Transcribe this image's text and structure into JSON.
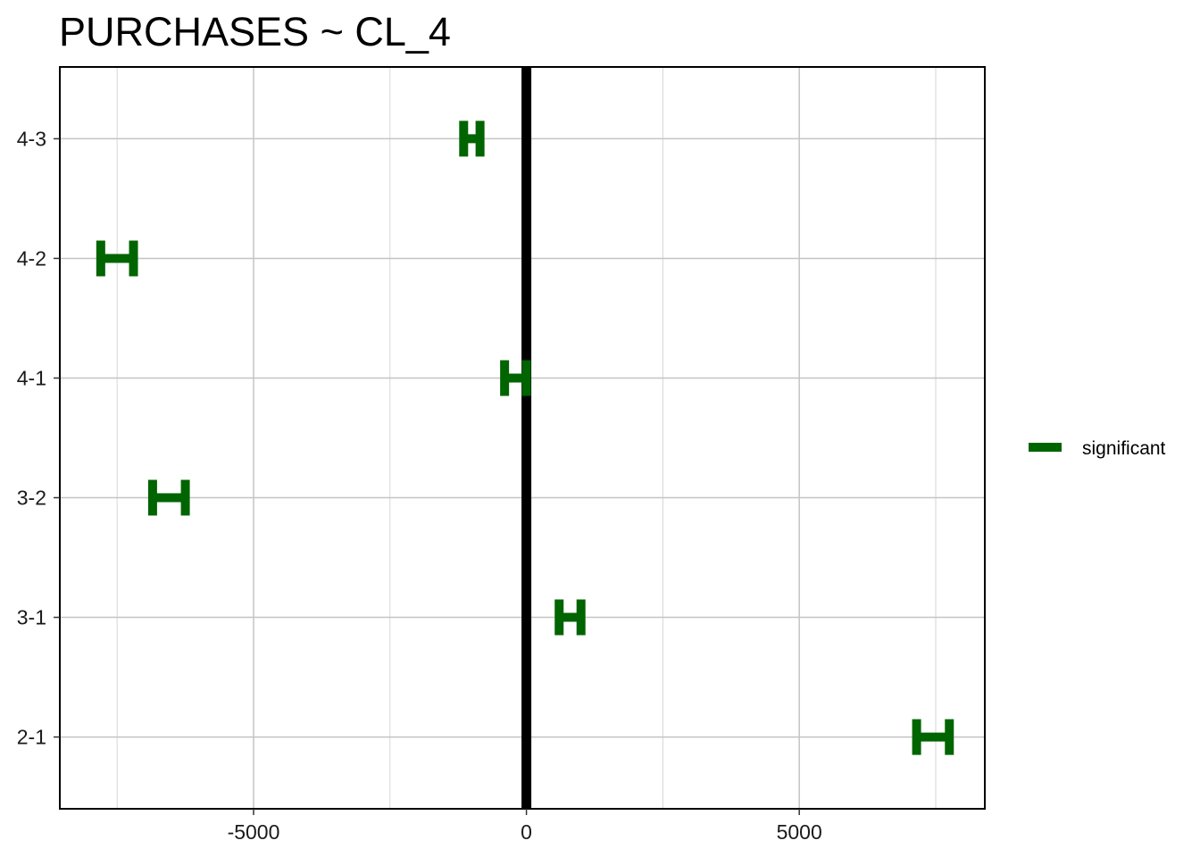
{
  "chart_data": {
    "type": "forest",
    "title": "PURCHASES  ~ CL_4",
    "xlabel": "",
    "ylabel": "",
    "xlim": [
      -8550,
      8400
    ],
    "x_ticks": [
      -5000,
      0,
      5000
    ],
    "x_tick_labels": [
      "-5000",
      "0",
      "5000"
    ],
    "x_minor_ticks": [
      -7500,
      -2500,
      2500,
      7500
    ],
    "categories": [
      "2-1",
      "3-1",
      "3-2",
      "4-1",
      "4-2",
      "4-3"
    ],
    "series": [
      {
        "name": "significant",
        "color": "#006400",
        "points": [
          {
            "category": "4-3",
            "estimate": -1000,
            "low": -1150,
            "high": -850
          },
          {
            "category": "4-2",
            "estimate": -7500,
            "low": -7800,
            "high": -7200
          },
          {
            "category": "4-1",
            "estimate": -200,
            "low": -400,
            "high": 0
          },
          {
            "category": "3-2",
            "estimate": -6550,
            "low": -6850,
            "high": -6250
          },
          {
            "category": "3-1",
            "estimate": 800,
            "low": 600,
            "high": 1000
          },
          {
            "category": "2-1",
            "estimate": 7450,
            "low": 7150,
            "high": 7750
          }
        ]
      }
    ],
    "reference_line": 0,
    "grid": true,
    "legend_position": "right"
  }
}
